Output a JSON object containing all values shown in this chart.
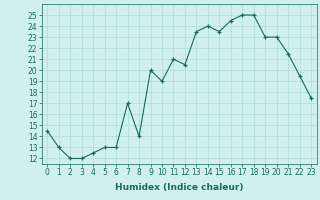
{
  "x": [
    0,
    1,
    2,
    3,
    4,
    5,
    6,
    7,
    8,
    9,
    10,
    11,
    12,
    13,
    14,
    15,
    16,
    17,
    18,
    19,
    20,
    21,
    22,
    23
  ],
  "y": [
    14.5,
    13.0,
    12.0,
    12.0,
    12.5,
    13.0,
    13.0,
    17.0,
    14.0,
    20.0,
    19.0,
    21.0,
    20.5,
    23.5,
    24.0,
    23.5,
    24.5,
    25.0,
    25.0,
    23.0,
    23.0,
    21.5,
    19.5,
    17.5
  ],
  "line_color": "#1a6b5a",
  "marker_color": "#1a6b5a",
  "bg_color": "#cff0ec",
  "grid_color": "#b0ddd8",
  "xlabel": "Humidex (Indice chaleur)",
  "xlim": [
    -0.5,
    23.5
  ],
  "ylim": [
    11.5,
    26.0
  ],
  "xticks": [
    0,
    1,
    2,
    3,
    4,
    5,
    6,
    7,
    8,
    9,
    10,
    11,
    12,
    13,
    14,
    15,
    16,
    17,
    18,
    19,
    20,
    21,
    22,
    23
  ],
  "yticks": [
    12,
    13,
    14,
    15,
    16,
    17,
    18,
    19,
    20,
    21,
    22,
    23,
    24,
    25
  ],
  "tick_fontsize": 5.5,
  "label_fontsize": 6.5
}
